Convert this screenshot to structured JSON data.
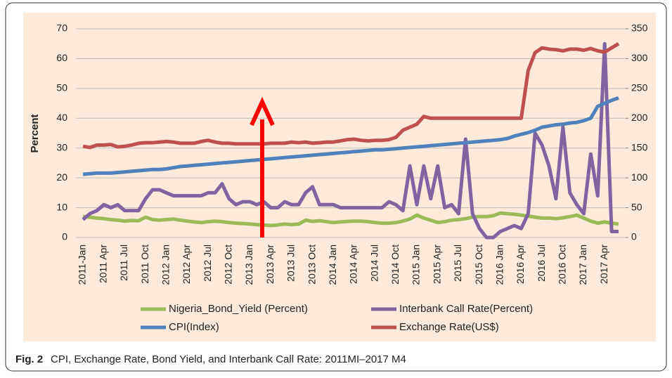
{
  "chart_data": {
    "type": "line",
    "caption_label": "Fig. 2",
    "caption": "CPI, Exchange Rate, Bond Yield, and Interbank Call Rate: 2011MI–2017 M4",
    "y_label": "Percent",
    "categories": [
      "2011-Jan",
      null,
      null,
      "2011 Apr",
      null,
      null,
      "2011 Jul",
      null,
      null,
      "2011 Oct",
      null,
      null,
      "2012 Jan",
      null,
      null,
      "2012 Apr",
      null,
      null,
      "2012 Jul",
      null,
      null,
      "2012 Oct",
      null,
      null,
      "2013 Jan",
      null,
      null,
      "2013 Apr",
      null,
      null,
      "2013 Jul",
      null,
      null,
      "2013 Oct",
      null,
      null,
      "2014 Jan",
      null,
      null,
      "2014 Apr",
      null,
      null,
      "2014 Jul",
      null,
      null,
      "2014 Oct",
      null,
      null,
      "2015 Jan",
      null,
      null,
      "2015 Apr",
      null,
      null,
      "2015 Jul",
      null,
      null,
      "2015 Oct",
      null,
      null,
      "2016 Jan",
      null,
      null,
      "2016 Apr",
      null,
      null,
      "2016 Jul",
      null,
      null,
      "2016 Oct",
      null,
      null,
      "2017 Jan",
      null,
      null,
      "2017 Apr",
      null,
      null
    ],
    "series": [
      {
        "name": "Nigeria_Bond_Yield (Percent)",
        "color": "#9bbb59",
        "values": [
          7,
          6.8,
          6.5,
          6.3,
          6,
          5.8,
          5.5,
          5.7,
          5.6,
          6.8,
          6,
          5.8,
          6,
          6.2,
          5.8,
          5.5,
          5.2,
          5,
          5.3,
          5.5,
          5.3,
          5,
          4.8,
          4.7,
          4.5,
          4.3,
          4.2,
          4,
          4.2,
          4.5,
          4.3,
          4.5,
          5.8,
          5.4,
          5.6,
          5.3,
          5,
          5.2,
          5.4,
          5.5,
          5.5,
          5.3,
          5,
          4.8,
          4.8,
          5,
          5.5,
          6.2,
          7.5,
          6.5,
          5.8,
          5,
          5.3,
          5.8,
          6,
          6.3,
          6.8,
          7,
          7,
          7.3,
          8.2,
          8,
          7.8,
          7.5,
          7.2,
          6.8,
          6.5,
          6.5,
          6.3,
          6.6,
          7,
          7.5,
          6.5,
          5.5,
          4.8,
          5.2,
          4.8,
          4.5
        ]
      },
      {
        "name": "Interbank Call Rate(Percent)",
        "color": "#8064a2",
        "values": [
          6,
          8,
          9,
          11,
          10,
          11,
          9,
          9,
          9,
          13,
          16,
          16,
          15,
          14,
          14,
          14,
          14,
          14,
          15,
          15,
          18,
          13,
          11,
          12,
          12,
          11,
          12,
          10,
          10,
          12,
          11,
          11,
          15,
          17,
          11,
          11,
          11,
          10,
          10,
          10,
          10,
          10,
          10,
          10,
          12,
          11,
          9,
          24,
          11,
          24,
          13,
          24,
          10,
          11,
          8,
          33,
          8,
          3,
          0,
          0,
          2,
          3,
          4,
          3,
          8,
          35,
          31,
          24,
          13,
          37,
          15,
          11,
          8,
          28,
          14,
          65,
          2,
          2
        ]
      },
      {
        "name": "CPI(Index)",
        "color": "#4f81bd",
        "axis": "y2",
        "values": [
          106,
          107,
          108,
          108,
          108,
          109,
          110,
          111,
          112,
          113,
          114,
          114,
          115,
          117,
          119,
          120,
          121,
          122,
          123,
          124,
          125,
          126,
          127,
          128,
          129,
          130,
          131,
          132,
          133,
          134,
          135,
          136,
          137,
          138,
          139,
          140,
          141,
          142,
          143,
          144,
          145,
          146,
          147,
          147,
          148,
          149,
          150,
          151,
          152,
          153,
          154,
          155,
          156,
          157,
          158,
          159,
          160,
          161,
          162,
          163,
          164,
          166,
          170,
          173,
          176,
          180,
          185,
          187,
          189,
          190,
          192,
          193,
          196,
          200,
          220,
          225,
          230,
          234
        ]
      },
      {
        "name": "Exchange Rate(US$)",
        "color": "#c0504d",
        "axis": "y2",
        "values": [
          153,
          151,
          155,
          155,
          156,
          152,
          153,
          155,
          158,
          159,
          159,
          160,
          161,
          160,
          158,
          158,
          158,
          161,
          163,
          160,
          158,
          158,
          157,
          157,
          157,
          157,
          157,
          158,
          158,
          158,
          160,
          159,
          160,
          158,
          159,
          160,
          160,
          162,
          164,
          165,
          163,
          162,
          163,
          163,
          164,
          168,
          180,
          185,
          190,
          203,
          200,
          200,
          200,
          200,
          200,
          200,
          200,
          200,
          200,
          200,
          200,
          200,
          200,
          200,
          280,
          310,
          318,
          316,
          315,
          313,
          316,
          316,
          314,
          317,
          313,
          311,
          318,
          325
        ]
      }
    ],
    "ylim": [
      0,
      70
    ],
    "yticks": [
      0,
      10,
      20,
      30,
      40,
      50,
      60,
      70
    ],
    "y2lim": [
      0,
      350
    ],
    "y2ticks": [
      0,
      50,
      100,
      150,
      200,
      250,
      300,
      350
    ],
    "grid": true
  }
}
